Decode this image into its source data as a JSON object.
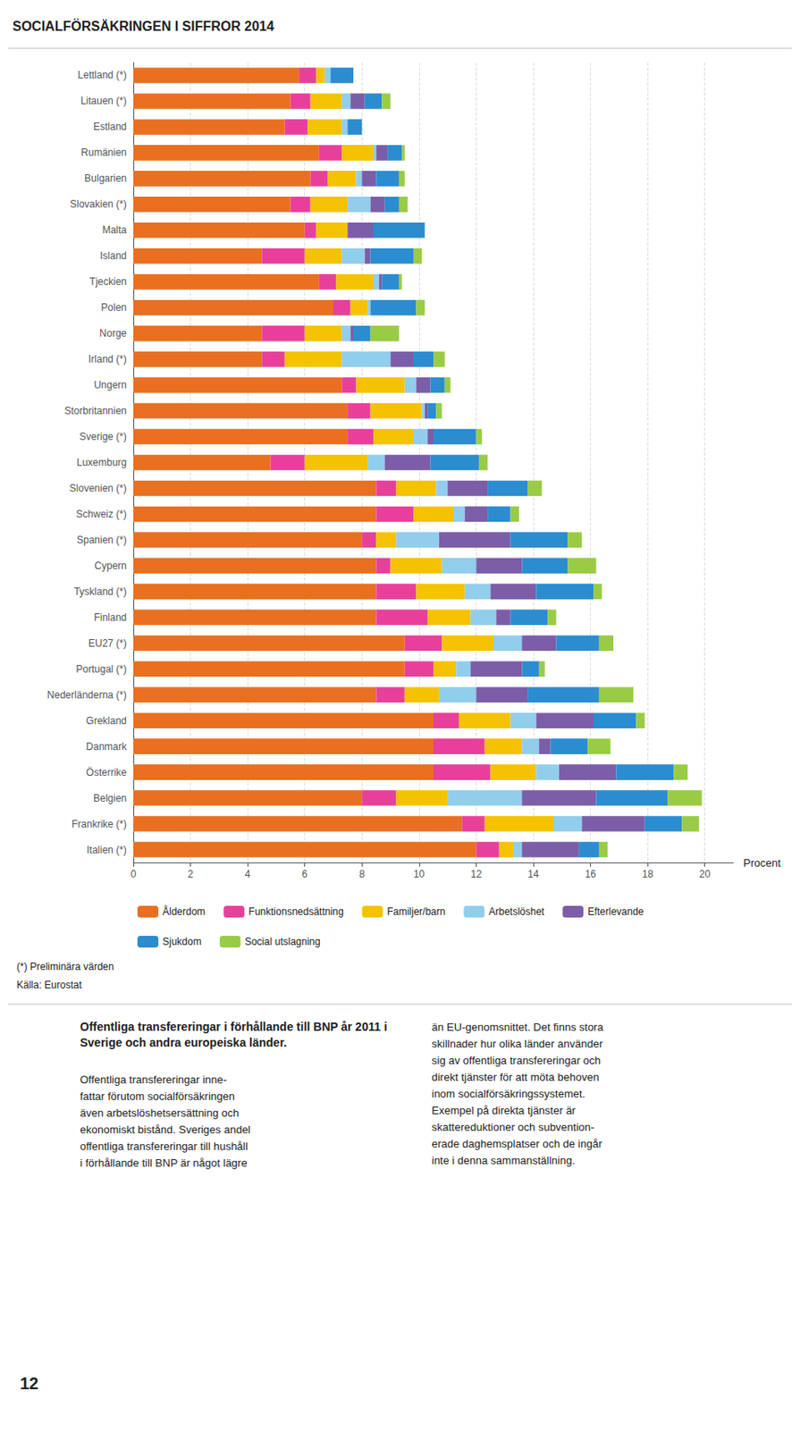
{
  "chart_data": {
    "type": "bar",
    "orientation": "horizontal",
    "stacked": true,
    "title": "SOCIALFÖRSÄKRINGEN I SIFFROR 2014",
    "xlabel": "Procent",
    "categories": [
      "Lettland (*)",
      "Litauen (*)",
      "Estland",
      "Rumänien",
      "Bulgarien",
      "Slovakien (*)",
      "Malta",
      "Island",
      "Tjeckien",
      "Polen",
      "Norge",
      "Irland (*)",
      "Ungern",
      "Storbritannien",
      "Sverige (*)",
      "Luxemburg",
      "Slovenien (*)",
      "Schweiz (*)",
      "Spanien (*)",
      "Cypern",
      "Tyskland (*)",
      "Finland",
      "EU27 (*)",
      "Portugal (*)",
      "Nederländerna (*)",
      "Grekland",
      "Danmark",
      "Österrike",
      "Belgien",
      "Frankrike (*)",
      "Italien (*)"
    ],
    "series": [
      {
        "name": "Ålderdom",
        "color": "#E87020",
        "values": [
          5.8,
          5.5,
          5.3,
          6.5,
          6.2,
          5.5,
          6.0,
          4.5,
          6.5,
          7.0,
          4.5,
          4.5,
          7.3,
          7.5,
          7.5,
          4.8,
          8.5,
          8.5,
          8.0,
          8.5,
          8.5,
          8.5,
          9.5,
          9.5,
          8.5,
          10.5,
          10.5,
          10.5,
          8.0,
          11.5,
          12.0
        ]
      },
      {
        "name": "Funktionsnedsättning",
        "color": "#E8409A",
        "values": [
          0.6,
          0.7,
          0.8,
          0.8,
          0.6,
          0.7,
          0.4,
          1.5,
          0.6,
          0.6,
          1.5,
          0.8,
          0.5,
          0.8,
          0.9,
          1.2,
          0.7,
          1.3,
          0.5,
          0.5,
          1.4,
          1.8,
          1.3,
          1.0,
          1.0,
          0.9,
          1.8,
          2.0,
          1.2,
          0.8,
          0.8
        ]
      },
      {
        "name": "Familjer/barn",
        "color": "#F5C200",
        "values": [
          0.3,
          1.1,
          1.2,
          1.1,
          1.0,
          1.3,
          1.1,
          1.3,
          1.3,
          0.6,
          1.3,
          2.0,
          1.7,
          1.8,
          1.4,
          2.2,
          1.4,
          1.4,
          0.7,
          1.8,
          1.7,
          1.5,
          1.8,
          0.8,
          1.2,
          1.8,
          1.3,
          1.6,
          1.8,
          2.4,
          0.5
        ]
      },
      {
        "name": "Arbetslöshet",
        "color": "#90CEEC",
        "values": [
          0.2,
          0.3,
          0.2,
          0.1,
          0.2,
          0.8,
          0.0,
          0.8,
          0.2,
          0.1,
          0.3,
          1.7,
          0.4,
          0.1,
          0.5,
          0.6,
          0.4,
          0.4,
          1.5,
          1.2,
          0.9,
          0.9,
          1.0,
          0.5,
          1.3,
          0.9,
          0.6,
          0.8,
          2.6,
          1.0,
          0.3
        ]
      },
      {
        "name": "Efterlevande",
        "color": "#7B5EA7",
        "values": [
          0.0,
          0.5,
          0.0,
          0.4,
          0.5,
          0.5,
          0.9,
          0.2,
          0.1,
          0.0,
          0.1,
          0.8,
          0.5,
          0.1,
          0.2,
          1.6,
          1.4,
          0.8,
          2.5,
          1.6,
          1.6,
          0.5,
          1.2,
          1.8,
          1.8,
          2.0,
          0.4,
          2.0,
          2.6,
          2.2,
          2.0
        ]
      },
      {
        "name": "Sjukdom",
        "color": "#2B8CD0",
        "values": [
          0.8,
          0.6,
          0.5,
          0.5,
          0.8,
          0.5,
          1.8,
          1.5,
          0.6,
          1.6,
          0.6,
          0.7,
          0.5,
          0.3,
          1.5,
          1.7,
          1.4,
          0.8,
          2.0,
          1.6,
          2.0,
          1.3,
          1.5,
          0.6,
          2.5,
          1.5,
          1.3,
          2.0,
          2.5,
          1.3,
          0.7
        ]
      },
      {
        "name": "Social utslagning",
        "color": "#99CC44",
        "values": [
          0.0,
          0.3,
          0.0,
          0.1,
          0.2,
          0.3,
          0.0,
          0.3,
          0.1,
          0.3,
          1.0,
          0.4,
          0.2,
          0.2,
          0.2,
          0.3,
          0.5,
          0.3,
          0.5,
          1.0,
          0.3,
          0.3,
          0.5,
          0.2,
          1.2,
          0.3,
          0.8,
          0.5,
          1.2,
          0.6,
          0.3
        ]
      }
    ],
    "xlim": [
      0,
      21
    ],
    "xticks": [
      0,
      2,
      4,
      6,
      8,
      10,
      12,
      14,
      16,
      18,
      20
    ],
    "grid": true,
    "legend": "bottom",
    "annotations": [
      "(*) Preliminära värden",
      "Källa: Eurostat",
      "Offentliga transfereringar i förhållande till BNP år 2011 i Sverige och andra europeiska länder.",
      "Offentliga transfereringar inne-\nfattar förutom socialförsäkringen\näven arbetslöshetsersättning och\nekonomiskt bistånd. Sveriges andel\noffentliga transfereringar till hushåll\ni förhållande till BNP är något lägre",
      "än EU-genomsnittet. Det finns stora\nskillnader hur olika länder använder\nsig av offentliga transfereringar och\ndirekt tjänster för att möta behoven\ninom socialförsäkringssystemet.\nExempel på direkta tjänster är\nskattereduktioner och subvention-\nerade daghemsplatser och de ingår\ninte i denna sammanställning.",
      "12"
    ]
  }
}
